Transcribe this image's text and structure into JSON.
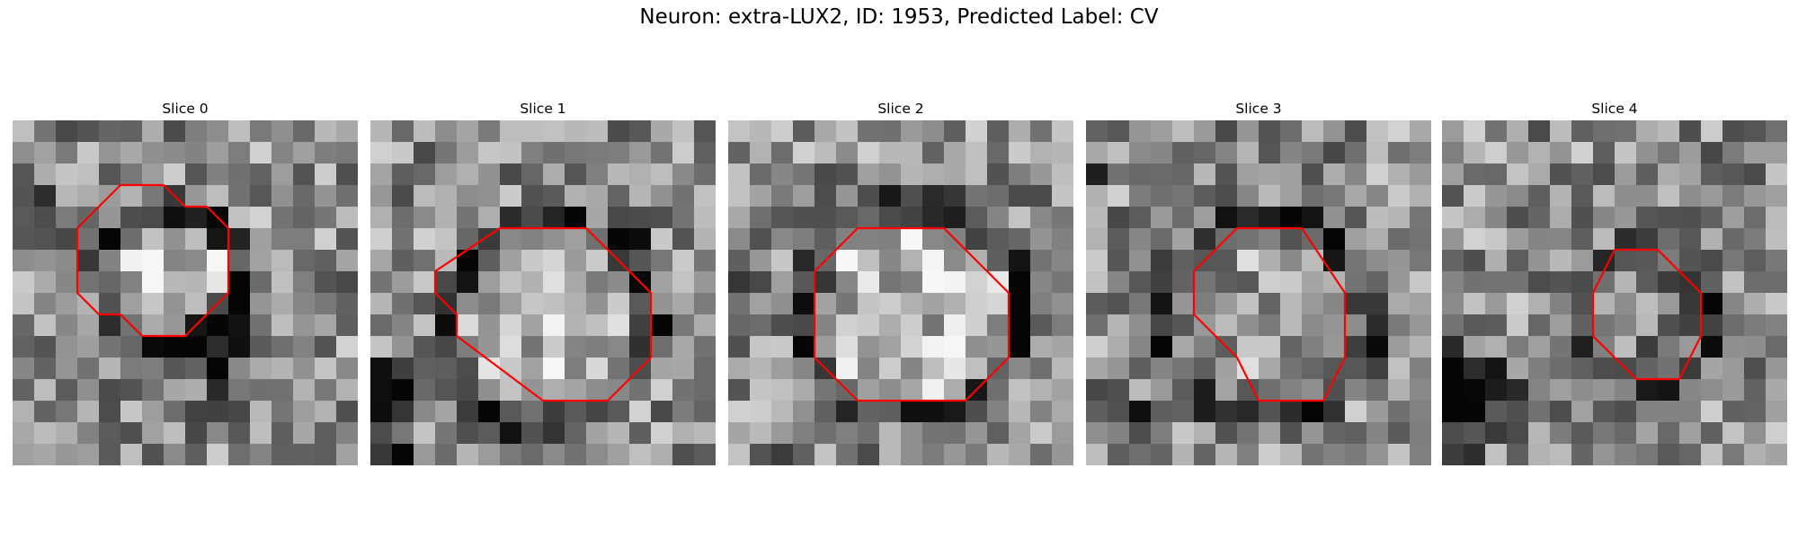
{
  "figure": {
    "title": "Neuron: extra-LUX2, ID: 1953, Predicted Label: CV"
  },
  "panels": [
    {
      "title": "Slice 0",
      "seed": 11,
      "ring": {
        "cx": 7.3,
        "cy": 7.3,
        "r": 3.2,
        "dark": 0.45,
        "inner": 0.85
      },
      "blotches": [
        [
          1.0,
          18.5,
          2.2,
          0.9
        ],
        [
          9.5,
          11.0,
          3.0,
          0.35
        ],
        [
          0.5,
          3.5,
          1.6,
          0.35
        ]
      ],
      "outline_name": "segmentation-outline"
    },
    {
      "title": "Slice 1",
      "seed": 23,
      "ring": {
        "cx": 8.3,
        "cy": 9.5,
        "r": 4.8,
        "dark": 0.5,
        "inner": 0.8
      },
      "blotches": [
        [
          0.8,
          12.5,
          2.0,
          0.85
        ],
        [
          1.2,
          16.0,
          2.0,
          0.6
        ],
        [
          12.5,
          5.5,
          1.0,
          0.5
        ]
      ],
      "outline_name": "segmentation-outline"
    },
    {
      "title": "Slice 2",
      "seed": 37,
      "ring": {
        "cx": 8.6,
        "cy": 8.8,
        "r": 5.0,
        "dark": 0.5,
        "inner": 0.85
      },
      "blotches": [
        [
          2.2,
          16.5,
          1.8,
          0.95
        ],
        [
          0.3,
          8.0,
          1.6,
          0.45
        ],
        [
          14.5,
          8.0,
          1.2,
          0.5
        ]
      ],
      "outline_name": "segmentation-outline"
    },
    {
      "title": "Slice 3",
      "seed": 41,
      "ring": {
        "cx": 8.3,
        "cy": 9.2,
        "r": 4.7,
        "dark": 0.45,
        "inner": 0.65
      },
      "blotches": [
        [
          0.8,
          2.6,
          1.0,
          0.75
        ],
        [
          13.2,
          10.8,
          0.9,
          0.85
        ],
        [
          2.5,
          14.0,
          1.8,
          0.45
        ]
      ],
      "outline_name": "segmentation-outline"
    },
    {
      "title": "Slice 4",
      "seed": 59,
      "ring": {
        "cx": 9.5,
        "cy": 9.2,
        "r": 3.2,
        "dark": 0.35,
        "inner": 0.45
      },
      "blotches": [
        [
          1.0,
          13.0,
          3.0,
          0.9
        ],
        [
          3.0,
          4.0,
          1.6,
          0.35
        ],
        [
          13.5,
          6.0,
          1.2,
          0.3
        ]
      ],
      "outline_name": "segmentation-outline"
    }
  ],
  "outlines": [
    [
      [
        5,
        3
      ],
      [
        7,
        3
      ],
      [
        8,
        4
      ],
      [
        9,
        4
      ],
      [
        10,
        5
      ],
      [
        10,
        8
      ],
      [
        8,
        10
      ],
      [
        6,
        10
      ],
      [
        5,
        9
      ],
      [
        4,
        9
      ],
      [
        3,
        8
      ],
      [
        3,
        5
      ]
    ],
    [
      [
        6,
        5
      ],
      [
        10,
        5
      ],
      [
        11,
        6
      ],
      [
        13,
        8
      ],
      [
        13,
        11
      ],
      [
        11,
        13
      ],
      [
        8,
        13
      ],
      [
        4,
        10
      ],
      [
        4,
        9
      ],
      [
        3,
        8
      ],
      [
        3,
        7
      ]
    ],
    [
      [
        6,
        5
      ],
      [
        10,
        5
      ],
      [
        13,
        8
      ],
      [
        13,
        11
      ],
      [
        11,
        13
      ],
      [
        10,
        13
      ],
      [
        8,
        13
      ],
      [
        6,
        13
      ],
      [
        4,
        11
      ],
      [
        4,
        7
      ]
    ],
    [
      [
        7,
        5
      ],
      [
        10,
        5
      ],
      [
        12,
        8
      ],
      [
        12,
        11
      ],
      [
        11,
        13
      ],
      [
        9,
        13
      ],
      [
        8,
        13
      ],
      [
        7,
        11
      ],
      [
        6,
        10
      ],
      [
        5,
        9
      ],
      [
        5,
        7
      ]
    ],
    [
      [
        8,
        6
      ],
      [
        10,
        6
      ],
      [
        12,
        8
      ],
      [
        12,
        10
      ],
      [
        11,
        12
      ],
      [
        9,
        12
      ],
      [
        7,
        10
      ],
      [
        7,
        8
      ]
    ]
  ]
}
